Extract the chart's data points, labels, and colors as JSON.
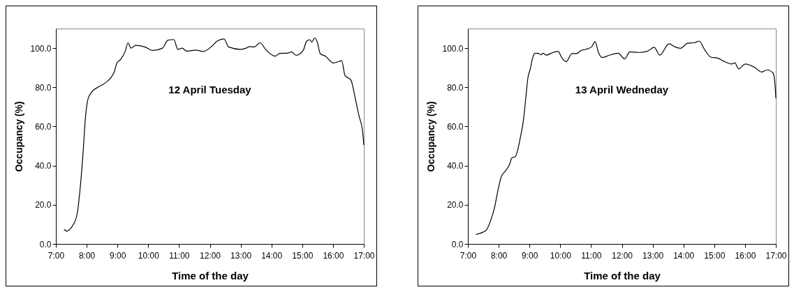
{
  "chart_data": [
    {
      "type": "line",
      "xlabel": "Time of the day",
      "ylabel": "Occupancy (%)",
      "annotations": [
        "12 April Tuesday"
      ],
      "color": "#000000",
      "x": [
        7.26,
        7.3,
        7.33,
        7.58,
        7.7,
        7.77,
        7.88,
        7.96,
        8.04,
        8.15,
        8.38,
        8.6,
        8.9,
        8.98,
        9.1,
        9.25,
        9.34,
        9.44,
        9.59,
        9.89,
        10.15,
        10.46,
        10.64,
        10.83,
        10.96,
        11.1,
        11.25,
        11.55,
        11.78,
        12.08,
        12.23,
        12.46,
        12.61,
        12.99,
        13.18,
        13.29,
        13.44,
        13.63,
        13.82,
        14.12,
        14.27,
        14.54,
        14.65,
        14.8,
        15.03,
        15.14,
        15.25,
        15.31,
        15.4,
        15.48,
        15.59,
        15.75,
        16.01,
        16.28,
        16.39,
        16.58,
        16.73,
        16.84,
        16.96,
        17.0
      ],
      "values": [
        7.1,
        7.2,
        6.5,
        10.3,
        16.1,
        25.4,
        45.8,
        64.4,
        73.8,
        77.3,
        80.2,
        82.2,
        88.0,
        92.4,
        94.2,
        98.3,
        102.7,
        100.0,
        101.4,
        100.6,
        98.8,
        100.0,
        104.1,
        104.4,
        99.4,
        100.0,
        98.5,
        99.0,
        98.3,
        101.2,
        103.5,
        104.7,
        100.6,
        99.4,
        100.0,
        100.8,
        100.6,
        102.7,
        99.2,
        95.9,
        97.3,
        97.5,
        98.1,
        96.3,
        98.8,
        103.5,
        104.3,
        103.1,
        105.2,
        103.5,
        97.1,
        95.9,
        92.4,
        93.6,
        86.0,
        83.7,
        73.8,
        65.6,
        57.4,
        50.5
      ],
      "xlim": [
        7,
        17
      ],
      "ylim": [
        0,
        110
      ],
      "xticks": [
        {
          "value": 7,
          "label": "7:00"
        },
        {
          "value": 8,
          "label": "8:00"
        },
        {
          "value": 9,
          "label": "9:00"
        },
        {
          "value": 10,
          "label": "10:00"
        },
        {
          "value": 11,
          "label": "11:00"
        },
        {
          "value": 12,
          "label": "12:00"
        },
        {
          "value": 13,
          "label": "13:00"
        },
        {
          "value": 14,
          "label": "14:00"
        },
        {
          "value": 15,
          "label": "15:00"
        },
        {
          "value": 16,
          "label": "16:00"
        },
        {
          "value": 17,
          "label": "17:00"
        }
      ],
      "yticks": [
        {
          "value": 0,
          "label": "0.0"
        },
        {
          "value": 20,
          "label": "20.0"
        },
        {
          "value": 40,
          "label": "40.0"
        },
        {
          "value": 60,
          "label": "60.0"
        },
        {
          "value": 80,
          "label": "80.0"
        },
        {
          "value": 100,
          "label": "100.0"
        }
      ]
    },
    {
      "type": "line",
      "xlabel": "Time of the day",
      "ylabel": "Occupancy (%)",
      "annotations": [
        "13 April Wedneday"
      ],
      "color": "#000000",
      "x": [
        7.26,
        7.49,
        7.6,
        7.75,
        7.86,
        7.98,
        8.09,
        8.2,
        8.35,
        8.43,
        8.54,
        8.61,
        8.69,
        8.8,
        8.88,
        8.95,
        9.03,
        9.1,
        9.18,
        9.29,
        9.37,
        9.44,
        9.55,
        9.7,
        9.93,
        10.04,
        10.19,
        10.38,
        10.53,
        10.68,
        10.83,
        11.02,
        11.13,
        11.24,
        11.36,
        11.58,
        11.88,
        12.09,
        12.26,
        12.56,
        12.82,
        13.05,
        13.23,
        13.53,
        13.72,
        13.91,
        14.13,
        14.36,
        14.51,
        14.7,
        14.89,
        15.11,
        15.34,
        15.56,
        15.67,
        15.79,
        16.01,
        16.31,
        16.54,
        16.72,
        16.91,
        16.97,
        17.0
      ],
      "values": [
        4.8,
        6.0,
        7.1,
        12.4,
        18.2,
        27.6,
        34.6,
        36.9,
        40.5,
        44.0,
        44.6,
        47.5,
        53.3,
        62.7,
        74.4,
        84.9,
        89.6,
        94.9,
        97.4,
        97.3,
        96.6,
        97.4,
        96.4,
        97.4,
        98.4,
        95.4,
        93.1,
        97.2,
        97.2,
        98.9,
        99.4,
        100.7,
        103.4,
        97.8,
        95.2,
        96.3,
        97.4,
        94.5,
        98.1,
        97.8,
        98.4,
        100.4,
        96.4,
        102.2,
        100.7,
        99.9,
        102.5,
        102.8,
        103.6,
        98.9,
        95.4,
        94.9,
        93.1,
        91.9,
        92.5,
        89.4,
        91.9,
        90.2,
        87.8,
        88.9,
        87.3,
        82.0,
        74.4
      ],
      "xlim": [
        7,
        17
      ],
      "ylim": [
        0,
        110
      ],
      "xticks": [
        {
          "value": 7,
          "label": "7:00"
        },
        {
          "value": 8,
          "label": "8:00"
        },
        {
          "value": 9,
          "label": "9:00"
        },
        {
          "value": 10,
          "label": "10:00"
        },
        {
          "value": 11,
          "label": "11:00"
        },
        {
          "value": 12,
          "label": "12:00"
        },
        {
          "value": 13,
          "label": "13:00"
        },
        {
          "value": 14,
          "label": "14:00"
        },
        {
          "value": 15,
          "label": "15:00"
        },
        {
          "value": 16,
          "label": "16:00"
        },
        {
          "value": 17,
          "label": "17:00"
        }
      ],
      "yticks": [
        {
          "value": 0,
          "label": "0.0"
        },
        {
          "value": 20,
          "label": "20.0"
        },
        {
          "value": 40,
          "label": "40.0"
        },
        {
          "value": 60,
          "label": "60.0"
        },
        {
          "value": 80,
          "label": "80.0"
        },
        {
          "value": 100,
          "label": "100.0"
        }
      ]
    }
  ]
}
